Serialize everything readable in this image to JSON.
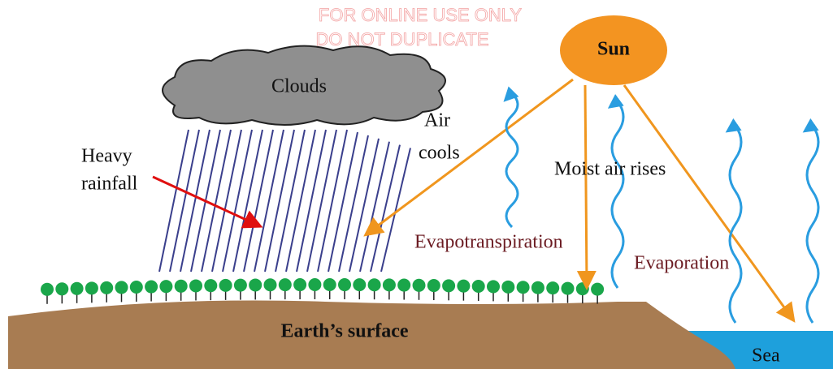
{
  "watermark": {
    "lines": [
      "FOR ONLINE USE ONLY",
      "DO NOT DUPLICATE"
    ]
  },
  "labels": {
    "sun": "Sun",
    "clouds": "Clouds",
    "air_cools": [
      "Air",
      "cools"
    ],
    "heavy_rainfall": [
      "Heavy",
      "rainfall"
    ],
    "moist_air_rises": "Moist air rises",
    "evapotranspiration": "Evapotranspiration",
    "evaporation": "Evaporation",
    "earths_surface": "Earth’s surface",
    "sea": "Sea"
  }
}
